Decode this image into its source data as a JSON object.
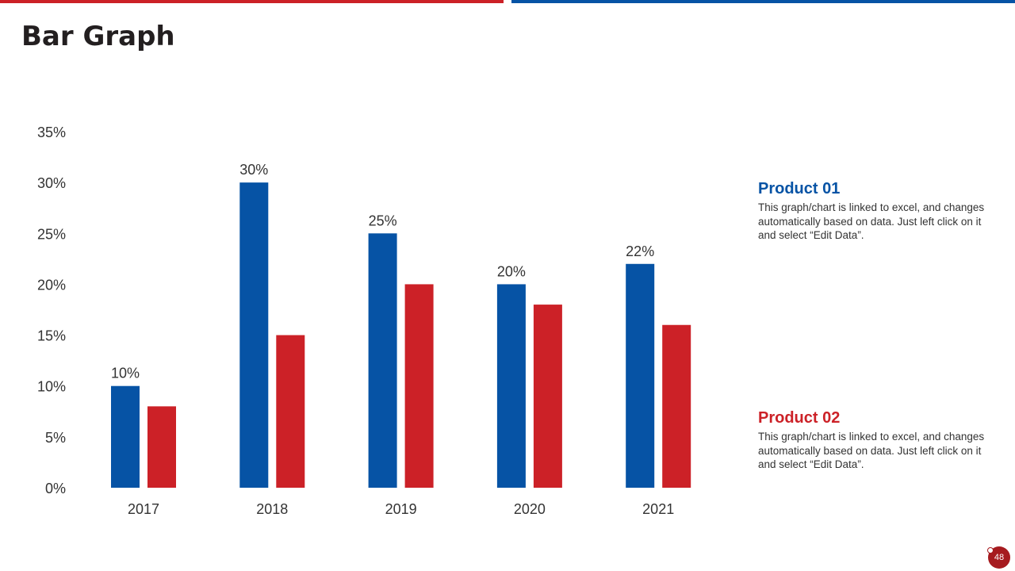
{
  "slide": {
    "title": "Bar Graph",
    "page_number": "48",
    "accent_red": "#cc2127",
    "accent_blue": "#0653a5"
  },
  "legend": [
    {
      "title": "Product 01",
      "color": "#0653a5",
      "description": "This graph/chart is linked to excel, and changes automatically based on data. Just left click on it and select “Edit Data”."
    },
    {
      "title": "Product 02",
      "color": "#cc2127",
      "description": "This graph/chart is linked to excel, and changes automatically based on data. Just left click on it and select “Edit Data”."
    }
  ],
  "chart_data": {
    "type": "bar",
    "title": "",
    "xlabel": "",
    "ylabel": "",
    "categories": [
      "2017",
      "2018",
      "2019",
      "2020",
      "2021"
    ],
    "series": [
      {
        "name": "Product 01",
        "color": "#0653a5",
        "values": [
          10,
          30,
          25,
          20,
          22
        ],
        "labels": [
          "10%",
          "30%",
          "25%",
          "20%",
          "22%"
        ]
      },
      {
        "name": "Product 02",
        "color": "#cc2127",
        "values": [
          8,
          15,
          20,
          18,
          16
        ]
      }
    ],
    "ylim": [
      0,
      35
    ],
    "yticks": [
      0,
      5,
      10,
      15,
      20,
      25,
      30,
      35
    ],
    "ytick_labels": [
      "0%",
      "5%",
      "10%",
      "15%",
      "20%",
      "25%",
      "30%",
      "35%"
    ],
    "grid": false,
    "legend_position": "right"
  }
}
